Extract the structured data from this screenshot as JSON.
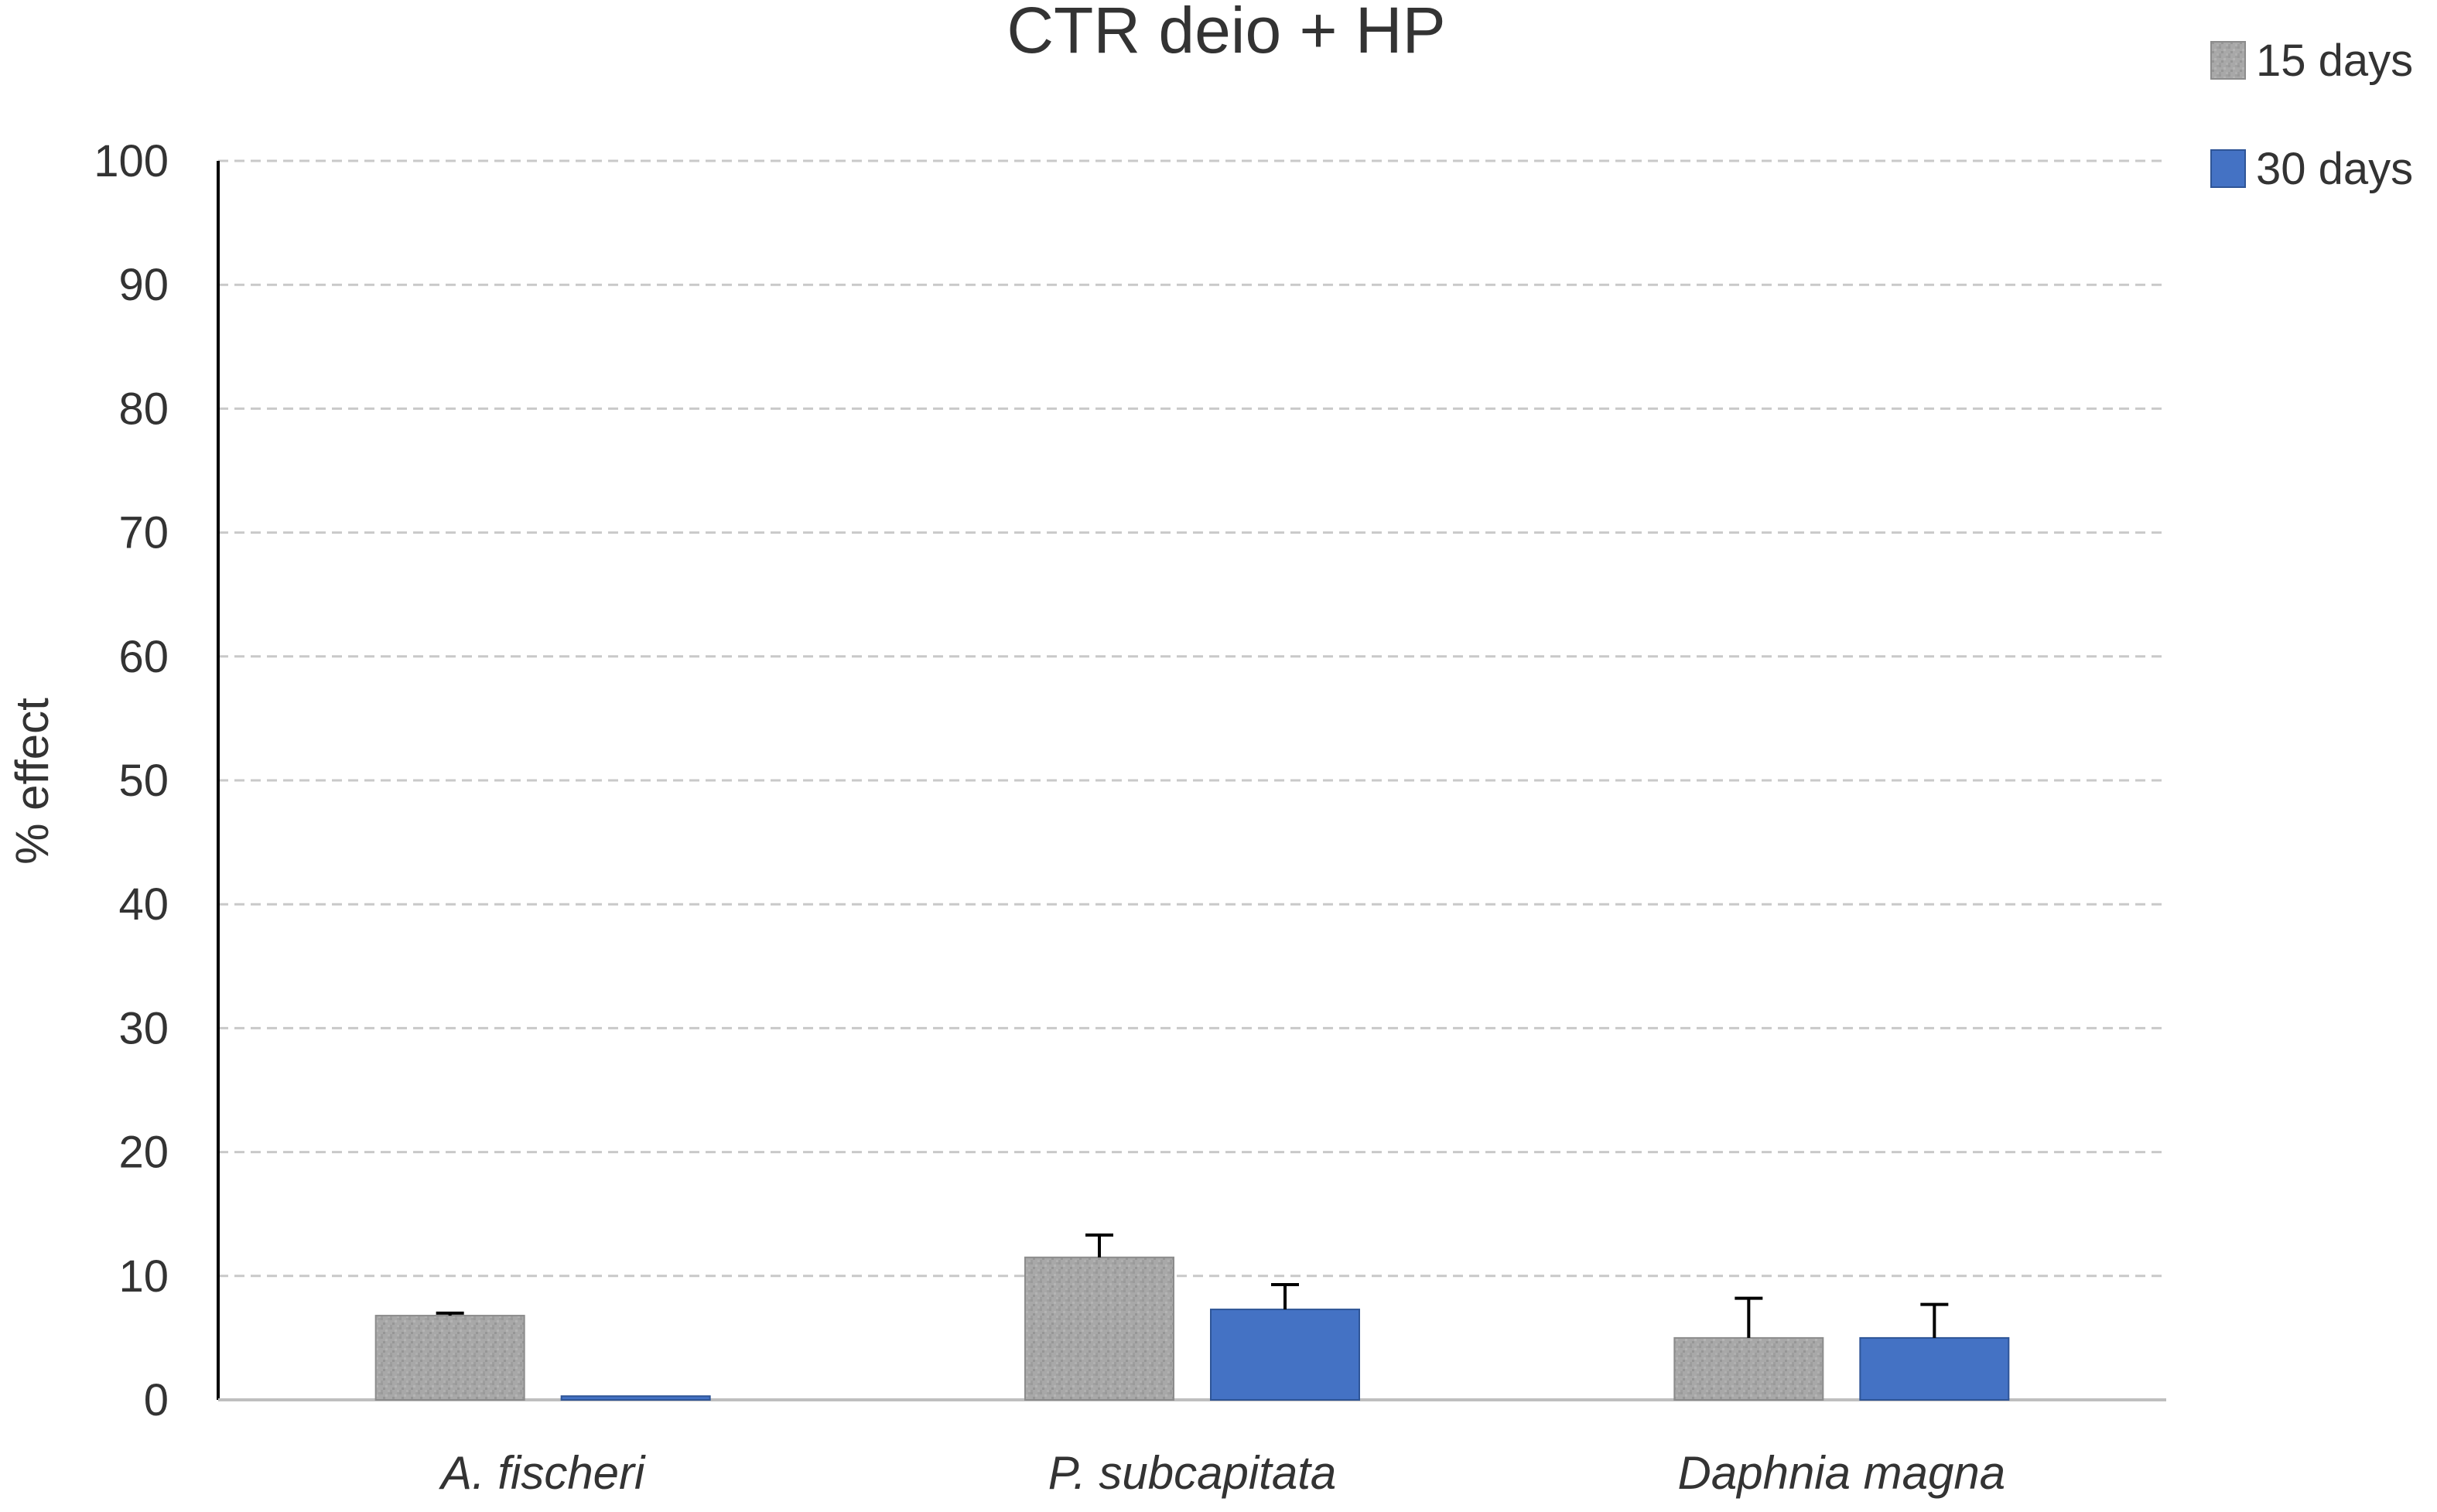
{
  "chart_data": {
    "type": "bar",
    "title": "CTR deio + HP",
    "xlabel": "",
    "ylabel": "% effect",
    "categories": [
      "A. fischeri",
      "P. subcapitata",
      "Daphnia magna"
    ],
    "series": [
      {
        "name": "15 days",
        "values": [
          6.8,
          11.5,
          5.0
        ],
        "errors": [
          0.2,
          1.8,
          3.2
        ],
        "color": "#a6a6a6",
        "pattern": "textured-gray"
      },
      {
        "name": "30 days",
        "values": [
          0.3,
          7.3,
          5.0
        ],
        "errors": [
          0.0,
          2.0,
          2.7
        ],
        "color": "#4472c4"
      }
    ],
    "ylim": [
      0,
      100
    ],
    "yticks": [
      0,
      10,
      20,
      30,
      40,
      50,
      60,
      70,
      80,
      90,
      100
    ],
    "grid": "dashed horizontal",
    "legend_position": "top-right"
  }
}
